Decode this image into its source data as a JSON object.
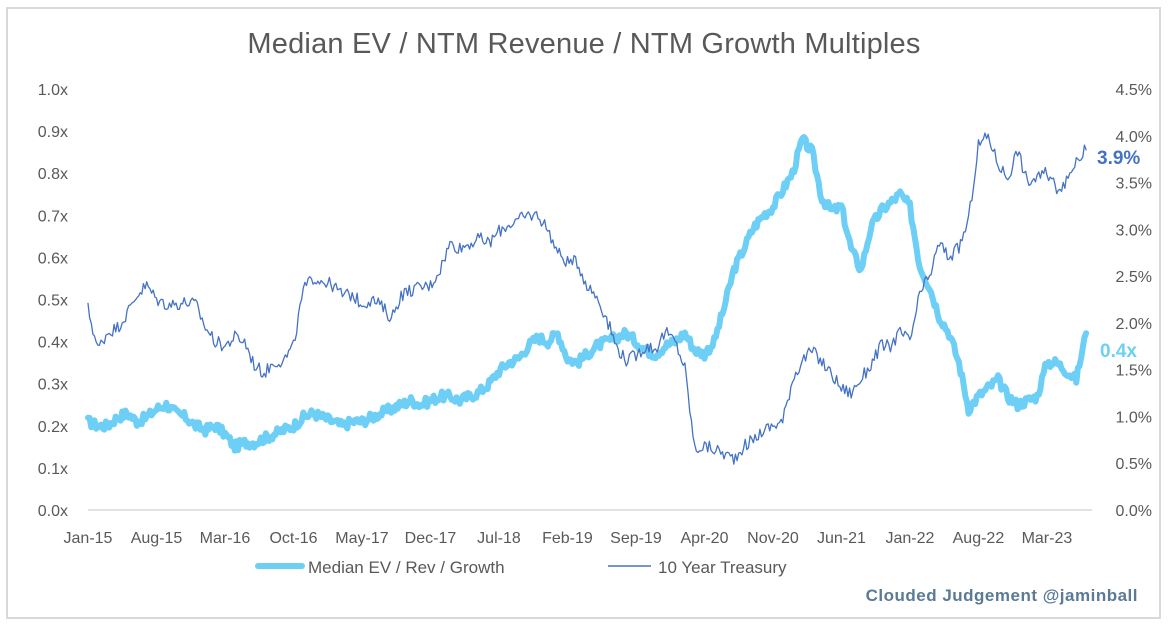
{
  "chart_data": {
    "type": "line",
    "title": "Median EV / NTM Revenue / NTM Growth Multiples",
    "xlabel": "",
    "ylabel": "",
    "y2label": "",
    "x_ticks": [
      "Jan-15",
      "Aug-15",
      "Mar-16",
      "Oct-16",
      "May-17",
      "Dec-17",
      "Jul-18",
      "Feb-19",
      "Sep-19",
      "Apr-20",
      "Nov-20",
      "Jun-21",
      "Jan-22",
      "Aug-22",
      "Mar-23"
    ],
    "y_ticks": [
      "0.0x",
      "0.1x",
      "0.2x",
      "0.3x",
      "0.4x",
      "0.5x",
      "0.6x",
      "0.7x",
      "0.8x",
      "0.9x",
      "1.0x"
    ],
    "y2_ticks": [
      "0.0%",
      "0.5%",
      "1.0%",
      "1.5%",
      "2.0%",
      "2.5%",
      "3.0%",
      "3.5%",
      "4.0%",
      "4.5%"
    ],
    "ylim": [
      0,
      1.0
    ],
    "y2lim": [
      0,
      4.5
    ],
    "grid": false,
    "legend_position": "bottom",
    "x_unit": "months since Jan-15",
    "series": [
      {
        "name": "Median EV / Rev / Growth",
        "axis": "left",
        "color": "#6dcff6",
        "end_label": "0.4x",
        "x": [
          0,
          1,
          2,
          3,
          4,
          5,
          6,
          7,
          8,
          9,
          10,
          11,
          12,
          13,
          14,
          15,
          16,
          17,
          18,
          19,
          20,
          21,
          22,
          23,
          24,
          25,
          26,
          27,
          28,
          29,
          30,
          31,
          32,
          33,
          34,
          35,
          36,
          37,
          38,
          39,
          40,
          41,
          42,
          43,
          44,
          45,
          46,
          47,
          48,
          49,
          50,
          51,
          52,
          53,
          54,
          55,
          56,
          57,
          58,
          59,
          60,
          61,
          62,
          63,
          64,
          65,
          66,
          67,
          68,
          69,
          70,
          71,
          72,
          73,
          74,
          75,
          76,
          77,
          78,
          79,
          80,
          81,
          82,
          83,
          84,
          85,
          86,
          87,
          88,
          89,
          90,
          91,
          92,
          93,
          94,
          95,
          96,
          97,
          98,
          99,
          100,
          101,
          102
        ],
        "values": [
          0.21,
          0.2,
          0.2,
          0.22,
          0.23,
          0.21,
          0.22,
          0.24,
          0.25,
          0.23,
          0.22,
          0.2,
          0.19,
          0.2,
          0.18,
          0.15,
          0.16,
          0.16,
          0.17,
          0.18,
          0.19,
          0.2,
          0.22,
          0.23,
          0.22,
          0.21,
          0.2,
          0.21,
          0.21,
          0.22,
          0.23,
          0.24,
          0.25,
          0.26,
          0.25,
          0.26,
          0.27,
          0.27,
          0.26,
          0.27,
          0.28,
          0.3,
          0.33,
          0.35,
          0.36,
          0.39,
          0.41,
          0.4,
          0.42,
          0.36,
          0.35,
          0.37,
          0.39,
          0.4,
          0.41,
          0.42,
          0.4,
          0.38,
          0.37,
          0.39,
          0.4,
          0.42,
          0.38,
          0.37,
          0.4,
          0.48,
          0.57,
          0.62,
          0.67,
          0.7,
          0.72,
          0.76,
          0.8,
          0.88,
          0.85,
          0.74,
          0.71,
          0.72,
          0.62,
          0.57,
          0.67,
          0.71,
          0.73,
          0.75,
          0.72,
          0.58,
          0.53,
          0.46,
          0.42,
          0.35,
          0.24,
          0.27,
          0.29,
          0.31,
          0.27,
          0.25,
          0.26,
          0.27,
          0.35,
          0.35,
          0.33,
          0.31,
          0.42
        ]
      },
      {
        "name": "10 Year Treasury",
        "axis": "right",
        "color": "#4472c4",
        "end_label": "3.9%",
        "x": [
          0,
          1,
          2,
          3,
          4,
          5,
          6,
          7,
          8,
          9,
          10,
          11,
          12,
          13,
          14,
          15,
          16,
          17,
          18,
          19,
          20,
          21,
          22,
          23,
          24,
          25,
          26,
          27,
          28,
          29,
          30,
          31,
          32,
          33,
          34,
          35,
          36,
          37,
          38,
          39,
          40,
          41,
          42,
          43,
          44,
          45,
          46,
          47,
          48,
          49,
          50,
          51,
          52,
          53,
          54,
          55,
          56,
          57,
          58,
          59,
          60,
          61,
          62,
          63,
          64,
          65,
          66,
          67,
          68,
          69,
          70,
          71,
          72,
          73,
          74,
          75,
          76,
          77,
          78,
          79,
          80,
          81,
          82,
          83,
          84,
          85,
          86,
          87,
          88,
          89,
          90,
          91,
          92,
          93,
          94,
          95,
          96,
          97,
          98,
          99,
          100,
          101,
          102
        ],
        "values": [
          2.15,
          1.72,
          1.9,
          1.95,
          2.1,
          2.3,
          2.4,
          2.25,
          2.2,
          2.2,
          2.22,
          2.2,
          1.95,
          1.8,
          1.75,
          1.85,
          1.8,
          1.55,
          1.46,
          1.58,
          1.6,
          1.75,
          2.35,
          2.48,
          2.45,
          2.4,
          2.3,
          2.3,
          2.2,
          2.25,
          2.18,
          2.05,
          2.3,
          2.35,
          2.38,
          2.4,
          2.58,
          2.85,
          2.8,
          2.85,
          2.9,
          2.85,
          2.98,
          3.05,
          3.1,
          3.15,
          3.15,
          3.0,
          2.75,
          2.65,
          2.65,
          2.4,
          2.28,
          2.05,
          1.75,
          1.6,
          1.65,
          1.75,
          1.72,
          1.9,
          1.8,
          1.52,
          0.65,
          0.68,
          0.65,
          0.6,
          0.55,
          0.68,
          0.75,
          0.85,
          0.9,
          0.95,
          1.4,
          1.6,
          1.7,
          1.58,
          1.45,
          1.3,
          1.25,
          1.4,
          1.55,
          1.75,
          1.75,
          1.9,
          1.8,
          2.3,
          2.5,
          2.85,
          2.7,
          2.8,
          3.1,
          3.9,
          4.0,
          3.7,
          3.55,
          3.85,
          3.5,
          3.55,
          3.6,
          3.45,
          3.5,
          3.75,
          3.85
        ]
      }
    ]
  },
  "credit": "Clouded Judgement @jaminball"
}
